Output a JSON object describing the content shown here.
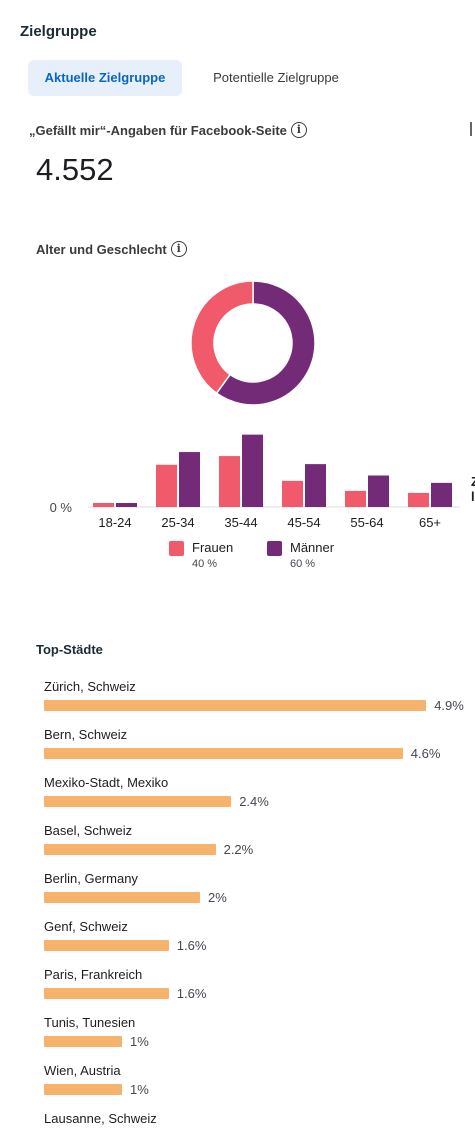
{
  "section": {
    "title": "Zielgruppe"
  },
  "tabs": [
    {
      "label": "Aktuelle Zielgruppe",
      "active": true
    },
    {
      "label": "Potentielle Zielgruppe",
      "active": false
    }
  ],
  "likes": {
    "label": "„Gefällt mir“-Angaben für Facebook-Seite",
    "value": "4.552",
    "info_icon": "info-icon"
  },
  "age_gender": {
    "title": "Alter und Geschlecht",
    "info_icon": "info-icon",
    "clipped_text": [
      "Z",
      "l"
    ]
  },
  "colors": {
    "frauen": "#f05a6a",
    "maenner": "#742b77",
    "city_bar": "#f7b36e",
    "tab_active_bg": "#e7f0fa",
    "tab_active_text": "#0a66c2"
  },
  "chart_data": [
    {
      "type": "pie",
      "labels": [
        "Frauen",
        "Männer"
      ],
      "values": [
        40,
        60
      ],
      "style": "donut"
    },
    {
      "type": "bar",
      "categories": [
        "18-24",
        "25-34",
        "35-44",
        "45-54",
        "55-64",
        "65+"
      ],
      "series": [
        {
          "name": "Frauen",
          "values": [
            0.6,
            6.3,
            7.6,
            3.9,
            2.4,
            2.1
          ]
        },
        {
          "name": "Männer",
          "values": [
            0.6,
            8.2,
            10.8,
            6.4,
            4.7,
            3.6
          ]
        }
      ],
      "ylabel": "",
      "ytick_label": "0 %",
      "ylim": [
        0,
        11
      ]
    },
    {
      "type": "bar",
      "orientation": "horizontal",
      "title": "Top-Städte",
      "categories": [
        "Zürich, Schweiz",
        "Bern, Schweiz",
        "Mexiko-Stadt, Mexiko",
        "Basel, Schweiz",
        "Berlin, Germany",
        "Genf, Schweiz",
        "Paris, Frankreich",
        "Tunis, Tunesien",
        "Wien, Austria",
        "Lausanne, Schweiz"
      ],
      "values": [
        4.9,
        4.6,
        2.4,
        2.2,
        2.0,
        1.6,
        1.6,
        1.0,
        1.0,
        null
      ],
      "value_labels": [
        "4.9%",
        "4.6%",
        "2.4%",
        "2.2%",
        "2%",
        "1.6%",
        "1.6%",
        "1%",
        "1%",
        ""
      ]
    }
  ],
  "legend": [
    {
      "name": "Frauen",
      "pct": "40 %"
    },
    {
      "name": "Männer",
      "pct": "60 %"
    }
  ],
  "cities_title": "Top-Städte"
}
